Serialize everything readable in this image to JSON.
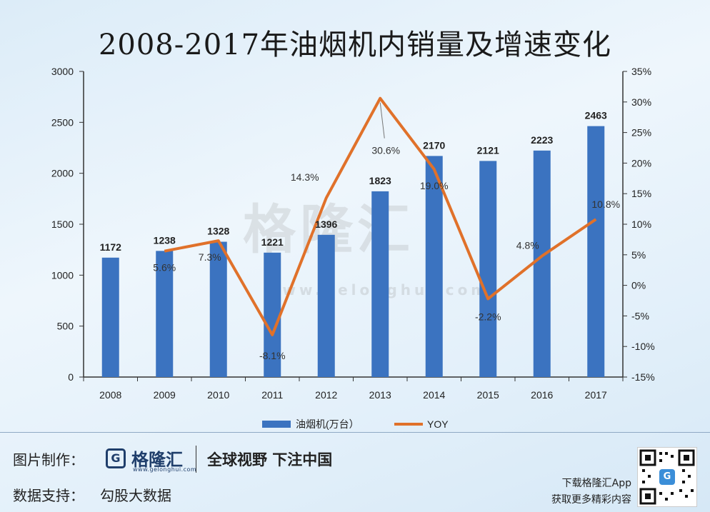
{
  "title": "2008-2017年油烟机内销量及增速变化",
  "watermark": {
    "brand": "格隆汇",
    "url": "www.gelonghui.com"
  },
  "chart_data": {
    "type": "bar",
    "categories": [
      "2008",
      "2009",
      "2010",
      "2011",
      "2012",
      "2013",
      "2014",
      "2015",
      "2016",
      "2017"
    ],
    "series": [
      {
        "name": "油烟机(万台）",
        "type": "bar",
        "axis": "left",
        "values": [
          1172,
          1238,
          1328,
          1221,
          1396,
          1823,
          2170,
          2121,
          2223,
          2463
        ],
        "labels": [
          "1172",
          "1238",
          "1328",
          "1221",
          "1396",
          "1823",
          "2170",
          "2121",
          "2223",
          "2463"
        ],
        "color": "#3b73c0"
      },
      {
        "name": "YOY",
        "type": "line",
        "axis": "right",
        "values": [
          null,
          5.6,
          7.3,
          -8.1,
          14.3,
          30.6,
          19.0,
          -2.2,
          4.8,
          10.8
        ],
        "labels": [
          "",
          "5.6%",
          "7.3%",
          "-8.1%",
          "14.3%",
          "30.6%",
          "19.0%",
          "-2.2%",
          "4.8%",
          "10.8%"
        ],
        "color": "#e0712a"
      }
    ],
    "ylim_left": [
      0,
      3000
    ],
    "yticks_left": [
      "0",
      "500",
      "1000",
      "1500",
      "2000",
      "2500",
      "3000"
    ],
    "ylim_right": [
      -15,
      35
    ],
    "yticks_right": [
      "-15%",
      "-10%",
      "-5%",
      "0%",
      "5%",
      "10%",
      "15%",
      "20%",
      "25%",
      "30%",
      "35%"
    ],
    "legend_position": "bottom",
    "grid": false
  },
  "footer": {
    "made_by_label": "图片制作：",
    "logo_glyph": "G",
    "logo_name": "格隆汇",
    "logo_url": "www.gelonghui.com",
    "slogan": "全球视野 下注中国",
    "data_label": "数据支持：",
    "data_source": "勾股大数据",
    "download_line1": "下载格隆汇App",
    "download_line2": "获取更多精彩内容",
    "qr_glyph": "G"
  }
}
